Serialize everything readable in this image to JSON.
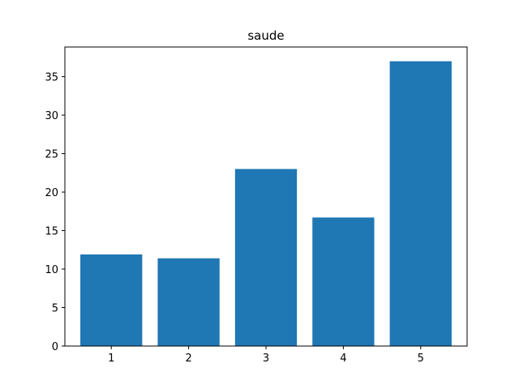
{
  "chart_data": {
    "type": "bar",
    "title": "saude",
    "xlabel": "",
    "ylabel": "",
    "categories": [
      "1",
      "2",
      "3",
      "4",
      "5"
    ],
    "x": [
      1,
      2,
      3,
      4,
      5
    ],
    "values": [
      11.9,
      11.4,
      23.0,
      16.7,
      37.0
    ],
    "xlim": [
      0.4,
      5.6
    ],
    "ylim": [
      0,
      38.85
    ],
    "yticks": [
      0,
      5,
      10,
      15,
      20,
      25,
      30,
      35
    ],
    "bar_color": "#1f77b4",
    "grid": false,
    "legend": "none"
  }
}
